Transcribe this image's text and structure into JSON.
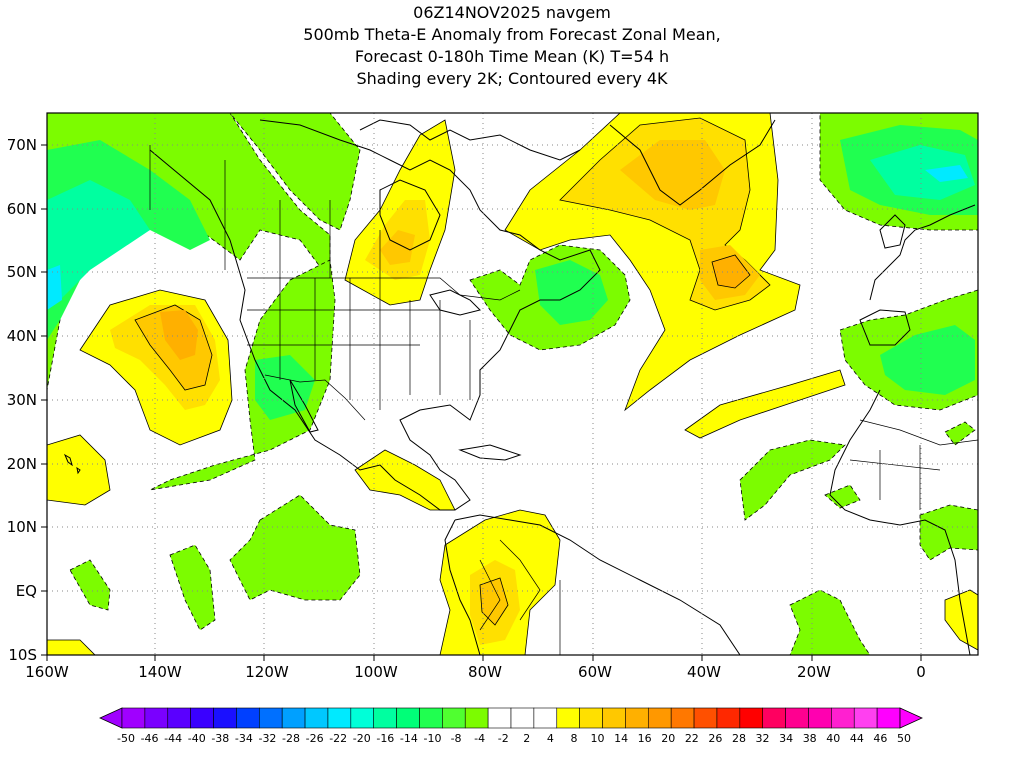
{
  "title": {
    "line1": "06Z14NOV2025 navgem",
    "line2": "500mb Theta-E Anomaly from Forecast Zonal Mean,",
    "line3": "Forecast 0-180h Time Mean (K) T=54 h",
    "line4": "Shading every 2K; Contoured every 4K"
  },
  "map": {
    "projection": "cylindrical lat-lon",
    "lon_range": [
      -160,
      10
    ],
    "lat_range": [
      -10,
      75
    ],
    "x_ticks": [
      "160W",
      "140W",
      "120W",
      "100W",
      "80W",
      "60W",
      "40W",
      "20W",
      "0"
    ],
    "y_ticks": [
      "70N",
      "60N",
      "50N",
      "40N",
      "30N",
      "20N",
      "10N",
      "EQ",
      "10S"
    ],
    "gridlines": "dotted"
  },
  "anomaly_regions": [
    {
      "name": "NE Pacific warm anomaly",
      "level": "+8 to +12 K",
      "center": [
        -134,
        42
      ]
    },
    {
      "name": "Greenland / N Atlantic warm ridge",
      "level": "+6 to +12 K",
      "center": [
        -45,
        60
      ]
    },
    {
      "name": "Hudson Bay warm tongue",
      "level": "+4 to +8 K",
      "center": [
        -92,
        55
      ]
    },
    {
      "name": "Gulf of Alaska cold anomaly",
      "level": "-4 to -14 K",
      "center": [
        -155,
        60
      ]
    },
    {
      "name": "Northern Europe / Scandinavia cold anomaly",
      "level": "-4 to -14 K",
      "center": [
        -5,
        65
      ]
    },
    {
      "name": "New England / Maritimes cold anomaly",
      "level": "-4 to -10 K",
      "center": [
        -63,
        45
      ]
    },
    {
      "name": "SW US cold anomaly",
      "level": "-4 to -8 K",
      "center": [
        -115,
        32
      ]
    },
    {
      "name": "Mediterranean cold anomaly",
      "level": "-4 to -8 K",
      "center": [
        -2,
        34
      ]
    },
    {
      "name": "Northern South America warm anomaly",
      "level": "+4 to +8 K",
      "center": [
        -72,
        2
      ]
    }
  ],
  "colorbar": {
    "labels": [
      "-50",
      "-46",
      "-44",
      "-40",
      "-38",
      "-34",
      "-32",
      "-28",
      "-26",
      "-22",
      "-20",
      "-16",
      "-14",
      "-10",
      "-8",
      "-4",
      "-2",
      "2",
      "4",
      "8",
      "10",
      "14",
      "16",
      "20",
      "22",
      "26",
      "28",
      "32",
      "34",
      "38",
      "40",
      "44",
      "46",
      "50"
    ],
    "colors": [
      "#a000ff",
      "#7a00ff",
      "#5a00ff",
      "#3a00ff",
      "#1a10ff",
      "#0040ff",
      "#0070ff",
      "#00a0ff",
      "#00c8ff",
      "#00eaff",
      "#00ffd8",
      "#00ffa0",
      "#00ff78",
      "#20ff50",
      "#50ff30",
      "#7cfc00",
      "#ffffff",
      "#ffffff",
      "#ffffff",
      "#ffff00",
      "#ffe000",
      "#ffc800",
      "#ffb000",
      "#ff9800",
      "#ff7800",
      "#ff5000",
      "#ff2800",
      "#ff0000",
      "#ff0060",
      "#ff0090",
      "#ff00b0",
      "#ff20d0",
      "#ff40f0",
      "#ff00ff"
    ]
  },
  "legend_colors": {
    "warm_light": "#ffff00",
    "warm_mid": "#ffe000",
    "warm_strong": "#ffc800",
    "warm_stronger": "#ffb000",
    "cold_light": "#7cfc00",
    "cold_mid": "#50ff30",
    "cold_strong": "#20ff50",
    "cold_stronger": "#00ffa0",
    "cold_strongest": "#00eaff"
  }
}
